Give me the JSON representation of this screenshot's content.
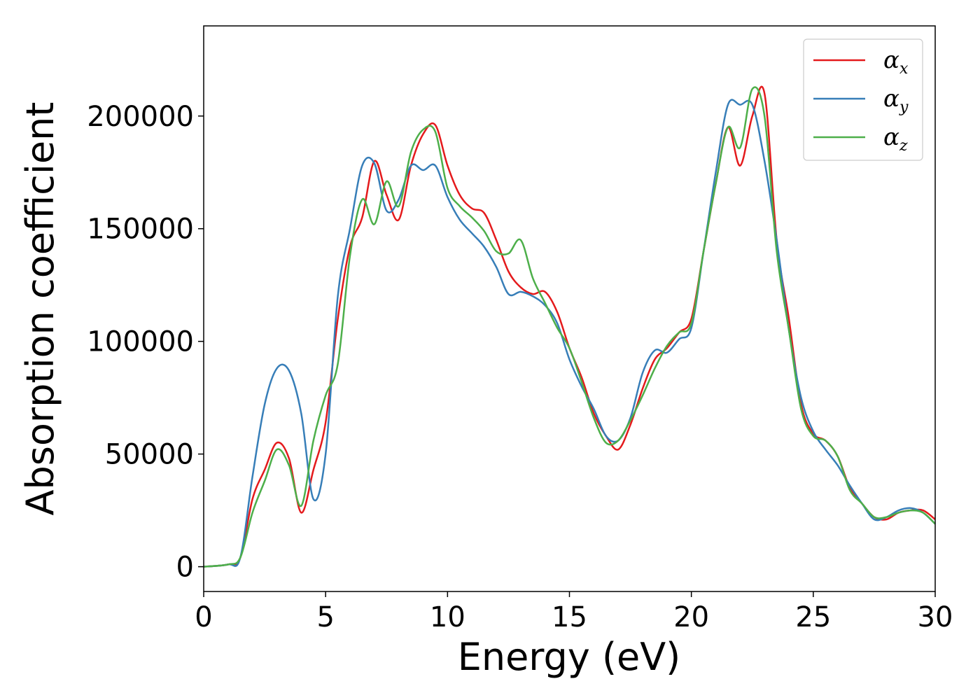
{
  "chart_data": {
    "type": "line",
    "title": "",
    "xlabel": "Energy (eV)",
    "ylabel": "Absorption coefficient",
    "xlim": [
      0,
      30
    ],
    "ylim": [
      -11000,
      240000
    ],
    "xticks": [
      0,
      5,
      10,
      15,
      20,
      25,
      30
    ],
    "yticks": [
      0,
      50000,
      100000,
      150000,
      200000
    ],
    "grid": false,
    "legend_position": "top-right",
    "x": [
      0,
      1,
      1.5,
      2,
      2.5,
      3,
      3.5,
      4,
      4.5,
      5,
      5.5,
      6,
      6.5,
      7,
      7.5,
      8,
      8.5,
      9,
      9.5,
      10,
      10.5,
      11,
      11.5,
      12,
      12.5,
      13,
      13.5,
      14,
      14.5,
      15,
      15.5,
      16,
      16.5,
      17,
      17.5,
      18,
      18.5,
      19,
      19.5,
      20,
      20.5,
      21,
      21.5,
      22,
      22.5,
      23,
      23.5,
      24,
      24.5,
      25,
      25.5,
      26,
      26.5,
      27,
      27.5,
      28,
      28.5,
      29,
      29.5,
      30
    ],
    "series": [
      {
        "name": "α",
        "subscript": "x",
        "color": "#e41a1c",
        "values": [
          0,
          1000,
          4000,
          30000,
          43000,
          55000,
          48000,
          24000,
          43000,
          64000,
          110000,
          142000,
          155000,
          180000,
          165000,
          154000,
          178000,
          192000,
          196000,
          178000,
          165000,
          159000,
          157000,
          145000,
          131000,
          124000,
          121000,
          122000,
          113000,
          97000,
          84000,
          68000,
          58000,
          52000,
          63000,
          79000,
          92000,
          97000,
          104000,
          110000,
          140000,
          170000,
          195000,
          178000,
          200000,
          210000,
          145000,
          110000,
          72000,
          59000,
          56000,
          49000,
          35000,
          28000,
          22000,
          21000,
          24000,
          25000,
          25000,
          21000
        ]
      },
      {
        "name": "α",
        "subscript": "y",
        "color": "#377eb8",
        "values": [
          0,
          1000,
          4000,
          40000,
          72000,
          88000,
          87000,
          68000,
          30000,
          50000,
          120000,
          150000,
          178000,
          179000,
          158000,
          163000,
          178000,
          176000,
          178000,
          164000,
          154000,
          148000,
          142000,
          133000,
          121000,
          122000,
          120000,
          116000,
          108000,
          92000,
          80000,
          70000,
          58000,
          56000,
          66000,
          86000,
          96000,
          95000,
          101000,
          106000,
          140000,
          175000,
          205000,
          205000,
          205000,
          180000,
          145000,
          105000,
          75000,
          60000,
          52000,
          45000,
          36000,
          28000,
          21000,
          22000,
          25000,
          26000,
          24000,
          19000
        ]
      },
      {
        "name": "α",
        "subscript": "z",
        "color": "#4daf4a",
        "values": [
          0,
          1000,
          4000,
          24000,
          38000,
          52000,
          45000,
          27000,
          56000,
          76000,
          90000,
          138000,
          163000,
          152000,
          171000,
          160000,
          184000,
          194000,
          193000,
          168000,
          160000,
          155000,
          149000,
          140000,
          139000,
          145000,
          128000,
          117000,
          106000,
          97000,
          82000,
          66000,
          55000,
          56000,
          65000,
          76000,
          88000,
          98000,
          104000,
          108000,
          140000,
          170000,
          195000,
          186000,
          212000,
          200000,
          140000,
          105000,
          70000,
          58000,
          56000,
          49000,
          34000,
          28000,
          22000,
          22000,
          24000,
          25000,
          24000,
          19000
        ]
      }
    ]
  }
}
